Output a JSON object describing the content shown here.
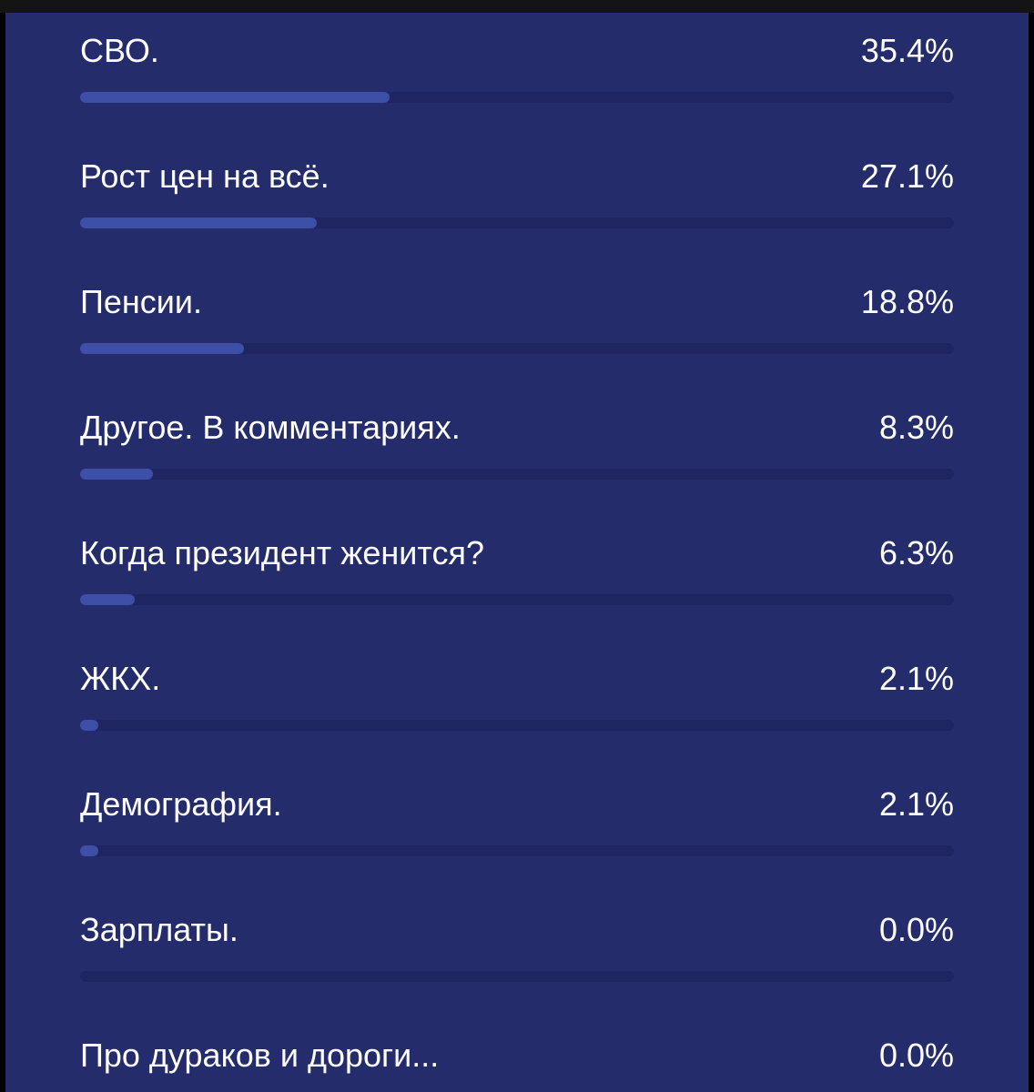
{
  "poll": {
    "options": [
      {
        "label": "СВО.",
        "percent_text": "35.4%",
        "bar_fraction": 0.354
      },
      {
        "label": "Рост цен на всё.",
        "percent_text": "27.1%",
        "bar_fraction": 0.271
      },
      {
        "label": "Пенсии.",
        "percent_text": "18.8%",
        "bar_fraction": 0.188
      },
      {
        "label": "Другое. В комментариях.",
        "percent_text": "8.3%",
        "bar_fraction": 0.083
      },
      {
        "label": "Когда президент женится?",
        "percent_text": "6.3%",
        "bar_fraction": 0.063
      },
      {
        "label": "ЖКХ.",
        "percent_text": "2.1%",
        "bar_fraction": 0.021
      },
      {
        "label": "Демография.",
        "percent_text": "2.1%",
        "bar_fraction": 0.021
      },
      {
        "label": "Зарплаты.",
        "percent_text": "0.0%",
        "bar_fraction": 0.0
      },
      {
        "label": "Про дураков и дороги...",
        "percent_text": "0.0%",
        "bar_fraction": 0.0
      }
    ]
  },
  "colors": {
    "background": "#252c6c",
    "track": "#1f2561",
    "fill": "#3e4fa8",
    "text": "#ffffff"
  }
}
